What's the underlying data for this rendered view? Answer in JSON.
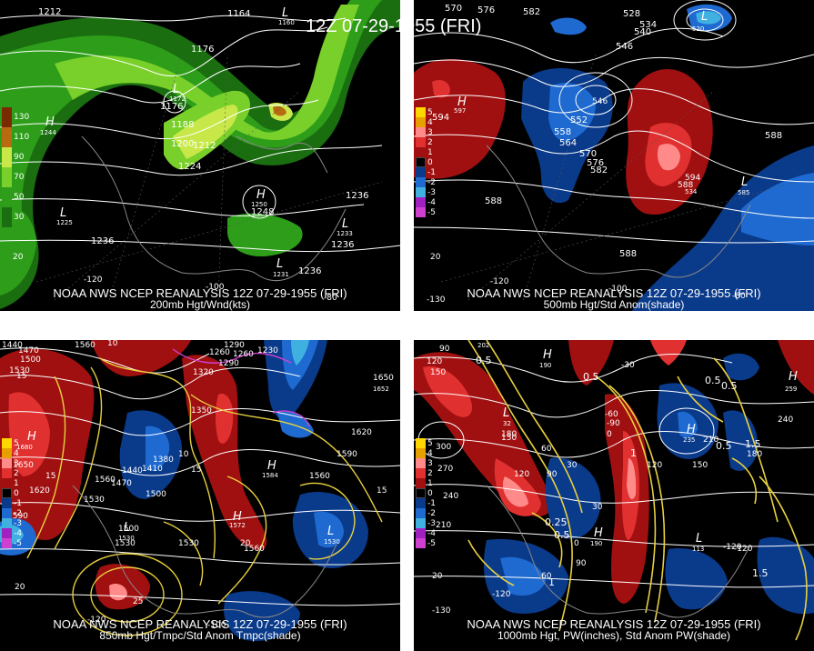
{
  "title": "12Z 07-29-1955 (FRI)",
  "panels": [
    {
      "id": "200mb",
      "caption_line1": "NOAA NWS NCEP REANALYSIS 12Z 07-29-1955 (FRI)",
      "caption_line2": "200mb Hgt/Wnd(kts)",
      "legend": [
        {
          "label": "130",
          "color": "#7a2a00"
        },
        {
          "label": "110",
          "color": "#b86a10"
        },
        {
          "label": "90",
          "color": "#c8e84a"
        },
        {
          "label": "70",
          "color": "#7ad02a"
        },
        {
          "label": "50",
          "color": "#2e9e1a"
        },
        {
          "label": "30",
          "color": "#1a6e10"
        }
      ],
      "contour_labels": [
        "1212",
        "1164",
        "1176",
        "1176",
        "1188",
        "1200",
        "1212",
        "1224",
        "1236",
        "1248",
        "1236",
        "1236",
        "1236"
      ],
      "highs": [
        "1244",
        "1250"
      ],
      "lows": [
        "1225",
        "1172",
        "1160",
        "1233",
        "1231"
      ],
      "lon_labels": [
        "-120",
        "-100",
        "-80"
      ],
      "lat_labels": [
        "20"
      ]
    },
    {
      "id": "500mb",
      "caption_line1": "NOAA NWS NCEP REANALYSIS 12Z 07-29-1955 (FRI)",
      "caption_line2": "500mb Hgt/Std Anom(shade)",
      "legend": [
        {
          "label": "5",
          "color": "#ffd700"
        },
        {
          "label": "4",
          "color": "#e8a000"
        },
        {
          "label": "3",
          "color": "#ff8a8a"
        },
        {
          "label": "2",
          "color": "#e03030"
        },
        {
          "label": "1",
          "color": "#a01010"
        },
        {
          "label": "0",
          "color": "#000000"
        },
        {
          "label": "-1",
          "color": "#0a3a8a"
        },
        {
          "label": "-2",
          "color": "#1e6ad0"
        },
        {
          "label": "-3",
          "color": "#40b0e0"
        },
        {
          "label": "-4",
          "color": "#a020c0"
        },
        {
          "label": "-5",
          "color": "#d040d0"
        }
      ],
      "contour_labels": [
        "570",
        "576",
        "582",
        "528",
        "534",
        "540",
        "546",
        "546",
        "552",
        "558",
        "564",
        "570",
        "576",
        "582",
        "588",
        "588",
        "588",
        "588"
      ],
      "highs": [
        "597",
        "594",
        "594"
      ],
      "lows": [
        "520",
        "534",
        "585"
      ],
      "lon_labels": [
        "-130",
        "-120",
        "-100",
        "-80"
      ],
      "lat_labels": [
        "20"
      ]
    },
    {
      "id": "850mb",
      "caption_line1": "NOAA NWS NCEP REANALYSIS 12Z 07-29-1955 (FRI)",
      "caption_line2": "850mb Hgt/Tmpc/Std Anom Tmpc(shade)",
      "legend": [
        {
          "label": "5",
          "color": "#ffd700"
        },
        {
          "label": "4",
          "color": "#e8a000"
        },
        {
          "label": "3",
          "color": "#ff8a8a"
        },
        {
          "label": "2",
          "color": "#e03030"
        },
        {
          "label": "1",
          "color": "#a01010"
        },
        {
          "label": "0",
          "color": "#000000"
        },
        {
          "label": "-1",
          "color": "#0a3a8a"
        },
        {
          "label": "-2",
          "color": "#1e6ad0"
        },
        {
          "label": "-3",
          "color": "#40b0e0"
        },
        {
          "label": "-4",
          "color": "#a020c0"
        },
        {
          "label": "-5",
          "color": "#d040d0"
        }
      ],
      "contour_labels": [
        "1440",
        "1470",
        "1500",
        "1530",
        "1560",
        "10",
        "1290",
        "1260",
        "1230",
        "1260",
        "1290",
        "1320",
        "1350",
        "1380",
        "1410",
        "1440",
        "1470",
        "1500",
        "1530",
        "1560",
        "1590",
        "1620",
        "1650",
        "1620",
        "1590",
        "1560",
        "1530",
        "1560",
        "1500",
        "1530",
        "15",
        "15",
        "15",
        "20",
        "25",
        "10",
        "15"
      ],
      "highs": [
        "1680",
        "1584",
        "1572"
      ],
      "lows": [
        "1530",
        "1530",
        "1650",
        "1652"
      ],
      "lon_labels": [
        "-120",
        "-100"
      ],
      "lat_labels": [
        "20"
      ]
    },
    {
      "id": "1000mb",
      "caption_line1": "NOAA NWS NCEP REANALYSIS 12Z 07-29-1955 (FRI)",
      "caption_line2": "1000mb Hgt, PW(inches), Std Anom PW(shade)",
      "legend": [
        {
          "label": "5",
          "color": "#ffd700"
        },
        {
          "label": "4",
          "color": "#e8a000"
        },
        {
          "label": "3",
          "color": "#ff8a8a"
        },
        {
          "label": "2",
          "color": "#e03030"
        },
        {
          "label": "1",
          "color": "#a01010"
        },
        {
          "label": "0",
          "color": "#000000"
        },
        {
          "label": "-1",
          "color": "#0a3a8a"
        },
        {
          "label": "-2",
          "color": "#1e6ad0"
        },
        {
          "label": "-3",
          "color": "#40b0e0"
        },
        {
          "label": "-4",
          "color": "#a020c0"
        },
        {
          "label": "-5",
          "color": "#d040d0"
        }
      ],
      "contour_labels": [
        "90",
        "120",
        "150",
        "300",
        "270",
        "240",
        "210",
        "180",
        "150",
        "120",
        "90",
        "60",
        "30",
        "0",
        "-30",
        "-60",
        "-90",
        "-120",
        "0.5",
        "0.5",
        "0.5",
        "0.5",
        "0.25",
        "0.5",
        "1",
        "1.5",
        "1.5",
        "1",
        "0.5",
        "240",
        "210",
        "180",
        "150",
        "120",
        "90",
        "60",
        "30",
        "0",
        "-120"
      ],
      "highs": [
        "202",
        "190",
        "235",
        "259",
        "190"
      ],
      "lows": [
        "32",
        "113"
      ],
      "lon_labels": [
        "-130",
        "-120"
      ],
      "lat_labels": [
        "20"
      ]
    }
  ]
}
